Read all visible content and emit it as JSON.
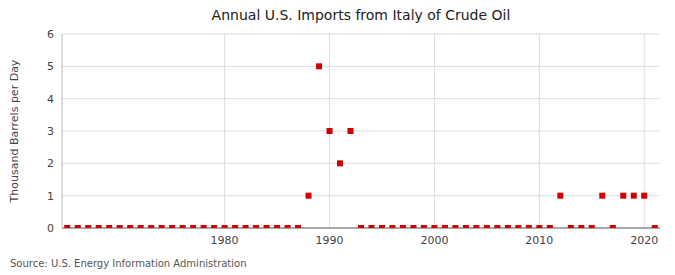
{
  "chart_data": {
    "type": "scatter",
    "title": "Annual U.S. Imports from Italy of Crude Oil",
    "y_label": "Thousand Barrels per Day",
    "annotations": [
      "Source: U.S. Energy Information Administration"
    ],
    "x": [
      1965,
      1966,
      1967,
      1968,
      1969,
      1970,
      1971,
      1972,
      1973,
      1974,
      1975,
      1976,
      1977,
      1978,
      1979,
      1980,
      1981,
      1982,
      1983,
      1984,
      1985,
      1986,
      1987,
      1988,
      1989,
      1990,
      1991,
      1992,
      1993,
      1994,
      1995,
      1996,
      1997,
      1998,
      1999,
      2000,
      2001,
      2002,
      2003,
      2004,
      2005,
      2006,
      2007,
      2008,
      2009,
      2010,
      2011,
      2012,
      2013,
      2014,
      2015,
      2016,
      2017,
      2018,
      2019,
      2020,
      2021
    ],
    "values": [
      0,
      0,
      0,
      0,
      0,
      0,
      0,
      0,
      0,
      0,
      0,
      0,
      0,
      0,
      0,
      0,
      0,
      0,
      0,
      0,
      0,
      0,
      0,
      1,
      5,
      3,
      2,
      3,
      0,
      0,
      0,
      0,
      0,
      0,
      0,
      0,
      0,
      0,
      0,
      0,
      0,
      0,
      0,
      0,
      0,
      0,
      0,
      1,
      0,
      0,
      0,
      1,
      0,
      1,
      1,
      1,
      0
    ],
    "color": "#cc0000",
    "marker": "square",
    "xlim": [
      1964.5,
      2021.5
    ],
    "xticks": [
      1980,
      1990,
      2000,
      2010,
      2020
    ],
    "ylim": [
      0,
      6
    ],
    "yticks": [
      0,
      1,
      2,
      3,
      4,
      5,
      6
    ],
    "grid": true
  }
}
